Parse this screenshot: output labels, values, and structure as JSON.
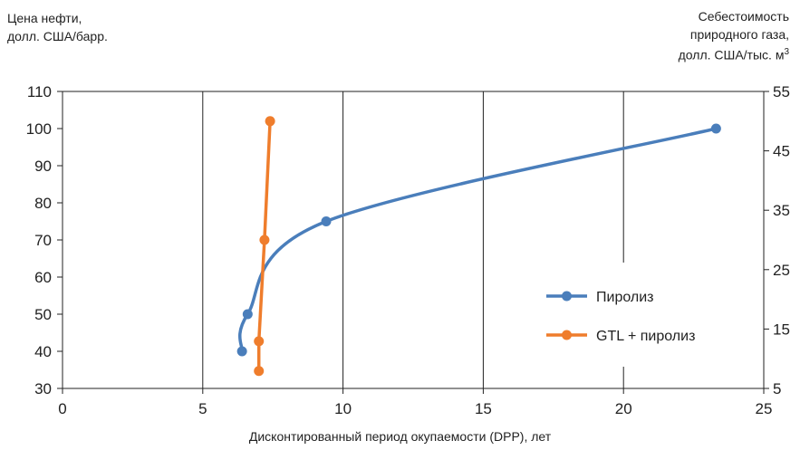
{
  "chart_data": {
    "type": "line",
    "title": "",
    "xlabel": "Дисконтированный период окупаемости (DPP), лет",
    "ylabel": [
      "Цена нефти,",
      "долл. США/барр."
    ],
    "y2label": [
      "Себестоимость",
      "природного газа,",
      "долл. США/тыс. м",
      "3"
    ],
    "xlim": [
      0,
      25
    ],
    "ylim": [
      30,
      110
    ],
    "y2lim": [
      5,
      55
    ],
    "x_ticks": [
      "0",
      "5",
      "10",
      "15",
      "20",
      "25"
    ],
    "y_ticks": [
      "110",
      "100",
      "90",
      "80",
      "70",
      "60",
      "50",
      "40",
      "30"
    ],
    "y2_ticks": [
      "55",
      "45",
      "35",
      "25",
      "15",
      "5"
    ],
    "grid": "vertical",
    "legend_position": "right",
    "series": [
      {
        "name": "Пиролиз",
        "color": "#4a7ebb",
        "axis": "left",
        "smooth": true,
        "points": [
          [
            6.4,
            40
          ],
          [
            6.6,
            50
          ],
          [
            9.4,
            75
          ],
          [
            23.3,
            100
          ]
        ]
      },
      {
        "name": "GTL + пиролиз",
        "color": "#ef7d2c",
        "axis": "left",
        "smooth": false,
        "points": [
          [
            7.0,
            34.7
          ],
          [
            7.0,
            42.7
          ],
          [
            7.2,
            70
          ],
          [
            7.4,
            102
          ]
        ]
      }
    ]
  }
}
